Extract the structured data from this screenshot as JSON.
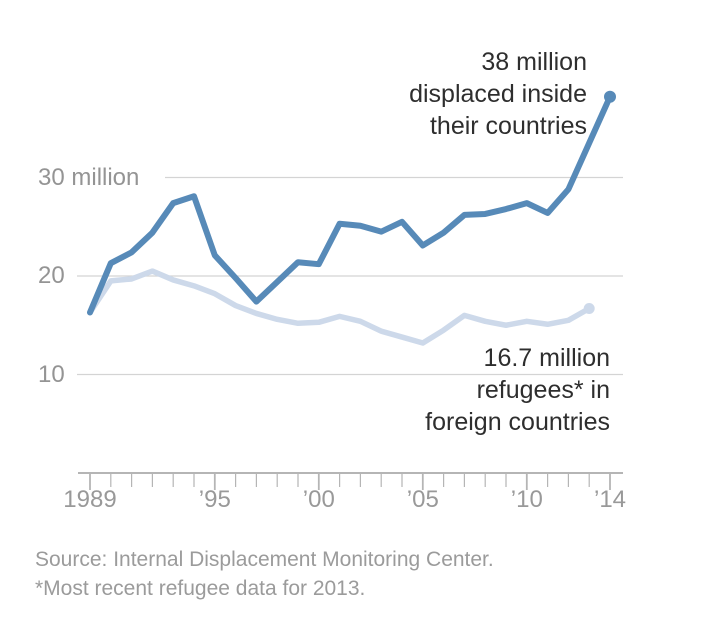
{
  "chart_data": {
    "type": "line",
    "title": "",
    "xlabel": "",
    "ylabel": "",
    "xlim": [
      1989,
      2014
    ],
    "ylim": [
      10,
      40
    ],
    "grid": true,
    "legend_position": "none",
    "x": [
      1989,
      1990,
      1991,
      1992,
      1993,
      1994,
      1995,
      1996,
      1997,
      1998,
      1999,
      2000,
      2001,
      2002,
      2003,
      2004,
      2005,
      2006,
      2007,
      2008,
      2009,
      2010,
      2011,
      2012,
      2013,
      2014
    ],
    "series": [
      {
        "name": "Displaced inside their countries",
        "color": "#578ab8",
        "end_dot": true,
        "values": [
          16.3,
          21.3,
          22.4,
          24.4,
          27.4,
          28.1,
          22.1,
          19.8,
          17.4,
          19.4,
          21.4,
          21.2,
          25.3,
          25.1,
          24.5,
          25.5,
          23.1,
          24.4,
          26.2,
          26.3,
          26.8,
          27.4,
          26.4,
          28.8,
          33.5,
          38.2
        ]
      },
      {
        "name": "Refugees in foreign countries",
        "color": "#cdd9ea",
        "end_dot": true,
        "values": [
          16.3,
          19.5,
          19.7,
          20.5,
          19.6,
          19.0,
          18.2,
          17.0,
          16.2,
          15.6,
          15.2,
          15.3,
          15.9,
          15.4,
          14.4,
          13.8,
          13.2,
          14.5,
          16.0,
          15.4,
          15.0,
          15.4,
          15.1,
          15.5,
          16.7,
          null
        ]
      }
    ],
    "y_ticks": [
      {
        "value": 30,
        "label": "30 million"
      },
      {
        "value": 20,
        "label": "20"
      },
      {
        "value": 10,
        "label": "10"
      }
    ],
    "x_ticks": [
      {
        "year": 1989,
        "label": "1989"
      },
      {
        "year": 1995,
        "label": "’95"
      },
      {
        "year": 2000,
        "label": "’00"
      },
      {
        "year": 2005,
        "label": "’05"
      },
      {
        "year": 2010,
        "label": "’10"
      },
      {
        "year": 2014,
        "label": "’14"
      }
    ]
  },
  "annotations": {
    "idp": {
      "lines": [
        "38 million",
        "displaced inside",
        "their countries"
      ]
    },
    "refugees": {
      "lines": [
        "16.7 million",
        "refugees* in",
        "foreign countries"
      ]
    }
  },
  "footnotes": {
    "source": "Source: Internal Displacement Monitoring Center.",
    "note": "*Most recent refugee data for 2013."
  },
  "colors": {
    "idp_line": "#578ab8",
    "refugee_line": "#cdd9ea",
    "grid": "#d4d4d4",
    "axis": "#b5b5b5",
    "tick_label": "#999999",
    "annotation_text": "#2e2e2e",
    "source_text": "#9b9b9b"
  }
}
